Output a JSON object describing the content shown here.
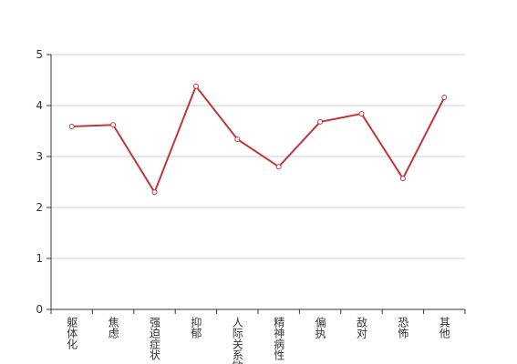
{
  "chart_data": {
    "type": "line",
    "categories": [
      "躯体化",
      "焦虑",
      "强迫症状",
      "抑郁",
      "人际关系敏感",
      "精神病性",
      "偏执",
      "敌对",
      "恐怖",
      "其他"
    ],
    "series": [
      {
        "color": "#c0373a",
        "values": [
          3.59,
          3.62,
          2.3,
          4.38,
          3.34,
          2.8,
          3.68,
          3.84,
          2.57,
          4.16
        ]
      }
    ],
    "ylim": [
      0,
      5
    ],
    "yticks": [
      0,
      1,
      2,
      3,
      4,
      5
    ],
    "grid": true
  }
}
